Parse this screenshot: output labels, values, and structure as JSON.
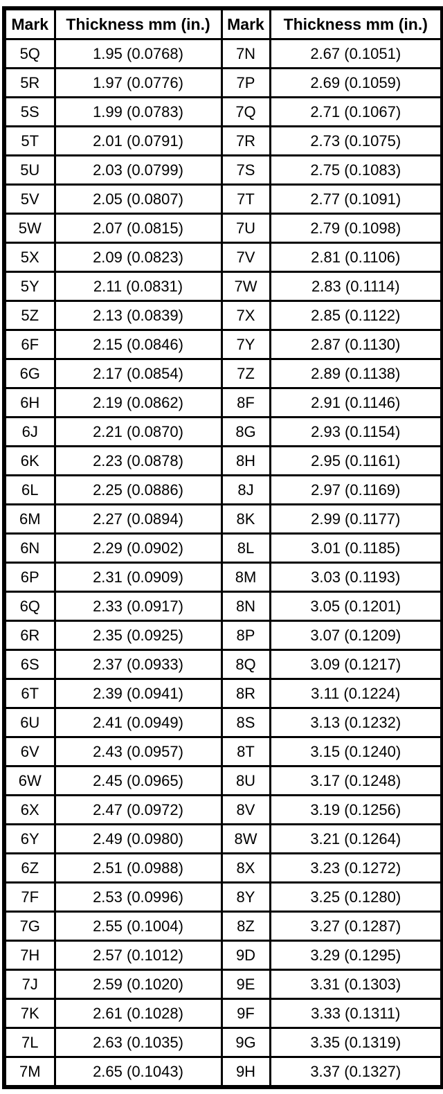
{
  "colors": {
    "border": "#000000",
    "background": "#ffffff",
    "text": "#000000"
  },
  "table": {
    "headers": [
      "Mark",
      "Thickness mm (in.)",
      "Mark",
      "Thickness mm (in.)"
    ],
    "rows": [
      [
        "5Q",
        "1.95 (0.0768)",
        "7N",
        "2.67 (0.1051)"
      ],
      [
        "5R",
        "1.97 (0.0776)",
        "7P",
        "2.69 (0.1059)"
      ],
      [
        "5S",
        "1.99 (0.0783)",
        "7Q",
        "2.71 (0.1067)"
      ],
      [
        "5T",
        "2.01 (0.0791)",
        "7R",
        "2.73 (0.1075)"
      ],
      [
        "5U",
        "2.03 (0.0799)",
        "7S",
        "2.75 (0.1083)"
      ],
      [
        "5V",
        "2.05 (0.0807)",
        "7T",
        "2.77 (0.1091)"
      ],
      [
        "5W",
        "2.07 (0.0815)",
        "7U",
        "2.79 (0.1098)"
      ],
      [
        "5X",
        "2.09 (0.0823)",
        "7V",
        "2.81 (0.1106)"
      ],
      [
        "5Y",
        "2.11 (0.0831)",
        "7W",
        "2.83 (0.1114)"
      ],
      [
        "5Z",
        "2.13 (0.0839)",
        "7X",
        "2.85 (0.1122)"
      ],
      [
        "6F",
        "2.15 (0.0846)",
        "7Y",
        "2.87 (0.1130)"
      ],
      [
        "6G",
        "2.17 (0.0854)",
        "7Z",
        "2.89 (0.1138)"
      ],
      [
        "6H",
        "2.19 (0.0862)",
        "8F",
        "2.91 (0.1146)"
      ],
      [
        "6J",
        "2.21 (0.0870)",
        "8G",
        "2.93 (0.1154)"
      ],
      [
        "6K",
        "2.23 (0.0878)",
        "8H",
        "2.95 (0.1161)"
      ],
      [
        "6L",
        "2.25 (0.0886)",
        "8J",
        "2.97 (0.1169)"
      ],
      [
        "6M",
        "2.27 (0.0894)",
        "8K",
        "2.99 (0.1177)"
      ],
      [
        "6N",
        "2.29 (0.0902)",
        "8L",
        "3.01 (0.1185)"
      ],
      [
        "6P",
        "2.31 (0.0909)",
        "8M",
        "3.03 (0.1193)"
      ],
      [
        "6Q",
        "2.33 (0.0917)",
        "8N",
        "3.05 (0.1201)"
      ],
      [
        "6R",
        "2.35 (0.0925)",
        "8P",
        "3.07 (0.1209)"
      ],
      [
        "6S",
        "2.37 (0.0933)",
        "8Q",
        "3.09 (0.1217)"
      ],
      [
        "6T",
        "2.39 (0.0941)",
        "8R",
        "3.11 (0.1224)"
      ],
      [
        "6U",
        "2.41 (0.0949)",
        "8S",
        "3.13 (0.1232)"
      ],
      [
        "6V",
        "2.43 (0.0957)",
        "8T",
        "3.15 (0.1240)"
      ],
      [
        "6W",
        "2.45 (0.0965)",
        "8U",
        "3.17 (0.1248)"
      ],
      [
        "6X",
        "2.47 (0.0972)",
        "8V",
        "3.19 (0.1256)"
      ],
      [
        "6Y",
        "2.49 (0.0980)",
        "8W",
        "3.21 (0.1264)"
      ],
      [
        "6Z",
        "2.51 (0.0988)",
        "8X",
        "3.23 (0.1272)"
      ],
      [
        "7F",
        "2.53 (0.0996)",
        "8Y",
        "3.25 (0.1280)"
      ],
      [
        "7G",
        "2.55 (0.1004)",
        "8Z",
        "3.27 (0.1287)"
      ],
      [
        "7H",
        "2.57 (0.1012)",
        "9D",
        "3.29 (0.1295)"
      ],
      [
        "7J",
        "2.59 (0.1020)",
        "9E",
        "3.31 (0.1303)"
      ],
      [
        "7K",
        "2.61 (0.1028)",
        "9F",
        "3.33 (0.1311)"
      ],
      [
        "7L",
        "2.63 (0.1035)",
        "9G",
        "3.35 (0.1319)"
      ],
      [
        "7M",
        "2.65 (0.1043)",
        "9H",
        "3.37 (0.1327)"
      ]
    ]
  }
}
